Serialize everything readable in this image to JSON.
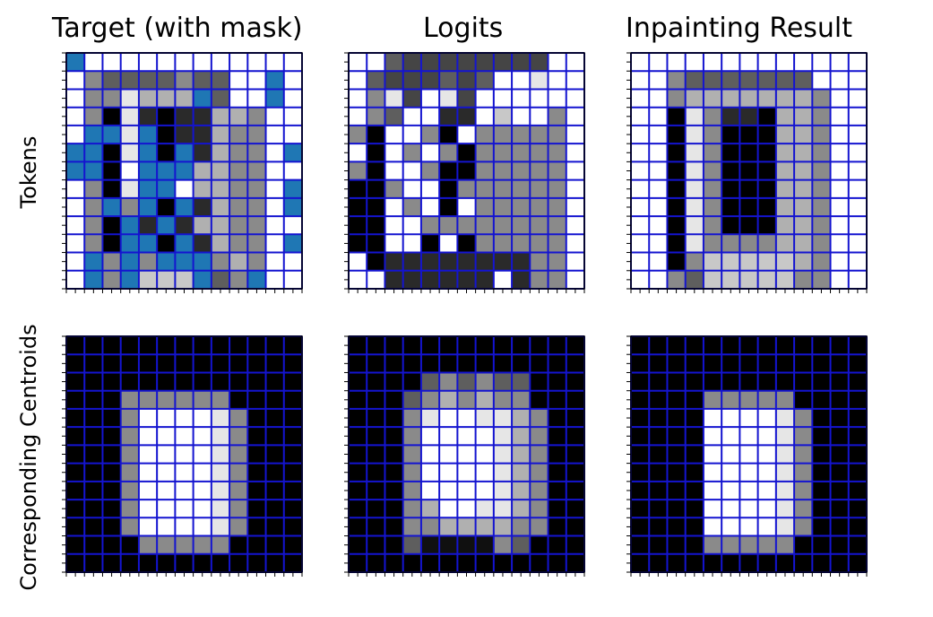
{
  "chart_data": {
    "type": "heatmap",
    "grid_size": 13,
    "grid_line_color": "#1414d0",
    "mask_color": "#1f77b4",
    "tick_marks": true,
    "tick_labels": false,
    "column_titles": [
      "Target (with mask)",
      "Logits",
      "Inpainting Result"
    ],
    "row_labels": [
      "Tokens",
      "Corresponding Centroids"
    ],
    "palette": {
      "W": "#ffffff",
      "L": "#e6e6e6",
      "S": "#c8c8c8",
      "A": "#b0b0b0",
      "M": "#8a8a8a",
      "G": "#5e5e5e",
      "D": "#454545",
      "C": "#2a2a2a",
      "K": "#000000",
      "B": "#1f77b4",
      "V": "#101010",
      "Z": "#000000"
    },
    "panels": [
      {
        "name": "target-tokens",
        "rows": [
          "BWWWWWWWWWWWW",
          "WMGGGGMGGWWBW",
          "WMMLAAABGWWBW",
          "WMKLCKCCAAMWW",
          "WBBLBKCCAMMWW",
          "BBKLBKBCAMMWB",
          "BBKWBBBAAMMWW",
          "WMKLBBWAAMMWB",
          "WMBMBKBCAMMWB",
          "WMKBCBCAAMMWW",
          "WMKBBKBCAMMWB",
          "WBMBMBBBMAMWW",
          "WBMBSSSBGMBWW"
        ]
      },
      {
        "name": "logits-tokens",
        "rows": [
          "WWGDDDDDDDDWW",
          "WGDDDGDGWWLWW",
          "WMLDWLDWWWWWW",
          "WMGWWCCWSWWMW",
          "MKWWMKWMMMMMW",
          "WKWMWMKMMMMMW",
          "MKWWMKKMMMMMW",
          "KKMWWKMMMMMMW",
          "KKWMWKWMMMMMW",
          "KKWWMMMMMMMMW",
          "KKWWKWKMMMMMW",
          "WKCCCCCCCCMMW",
          "WWCCCCCCWCMMW"
        ]
      },
      {
        "name": "inpainting-tokens",
        "rows": [
          "WWWWWWWWWWWWW",
          "WWMGGGGGGGWWW",
          "WWMAAAAAAAMWW",
          "WWKLMCCKAAMWW",
          "WWKLMKKKAAMWW",
          "WWKLMKKKAAMWW",
          "WWKLMKKKAAMWW",
          "WWKLMKKKAAMWW",
          "WWKLMKKKAAMWW",
          "WWKLMKKKAAMWW",
          "WWKLMMMMAAMWW",
          "WWKMSSSSSAMWW",
          "WWMGSSSSSMMWW"
        ]
      },
      {
        "name": "target-centroids",
        "rows": [
          "KKKKKKKKKKKKK",
          "KKKKKKKKKKKKK",
          "KKKKKKKKKKKKK",
          "KKKMMMMMMKKKK",
          "KKKMWWWWLMKKK",
          "KKKMWWWWLMKKK",
          "KKKMWWWWLMKKK",
          "KKKMWWWWLMKKK",
          "KKKMWWWWLMKKK",
          "KKKMWWWWLMKKK",
          "KKKMWWWWLMKKK",
          "KKKKMMMMMKKKK",
          "KKKKKKKKKKKKK"
        ]
      },
      {
        "name": "logits-centroids",
        "rows": [
          "KKKKKKKKKKKKK",
          "KKKKKKKKKKKKK",
          "KKKKGMGMGGKKK",
          "KKKGMAMAMMKKK",
          "KKKMLWWLLAMKK",
          "KKKMWWWWLAMKK",
          "KKKMWWWWLAMKK",
          "KKKMWWWWLAMKK",
          "KKKMWWWWLAMKK",
          "KKKMAWWLLAMKK",
          "KKKMMAAAAMMKK",
          "KKKGVVVVMGKKK",
          "KKKKKKKKKKKKK"
        ]
      },
      {
        "name": "inpainting-centroids",
        "rows": [
          "KKKKKKKKKKKKK",
          "KKKKKKKKKKKKK",
          "KKKKKKKKKKKKK",
          "KKKKMMMMMKKKK",
          "KKKKWWWWLMKKK",
          "KKKKWWWWLMKKK",
          "KKKKWWWWLMKKK",
          "KKKKWWWWLMKKK",
          "KKKKWWWWLMKKK",
          "KKKKWWWWLMKKK",
          "KKKKWWWWLMKKK",
          "KKKKMMMMMKKKK",
          "KKKKKKKKKKKKK"
        ]
      }
    ]
  }
}
